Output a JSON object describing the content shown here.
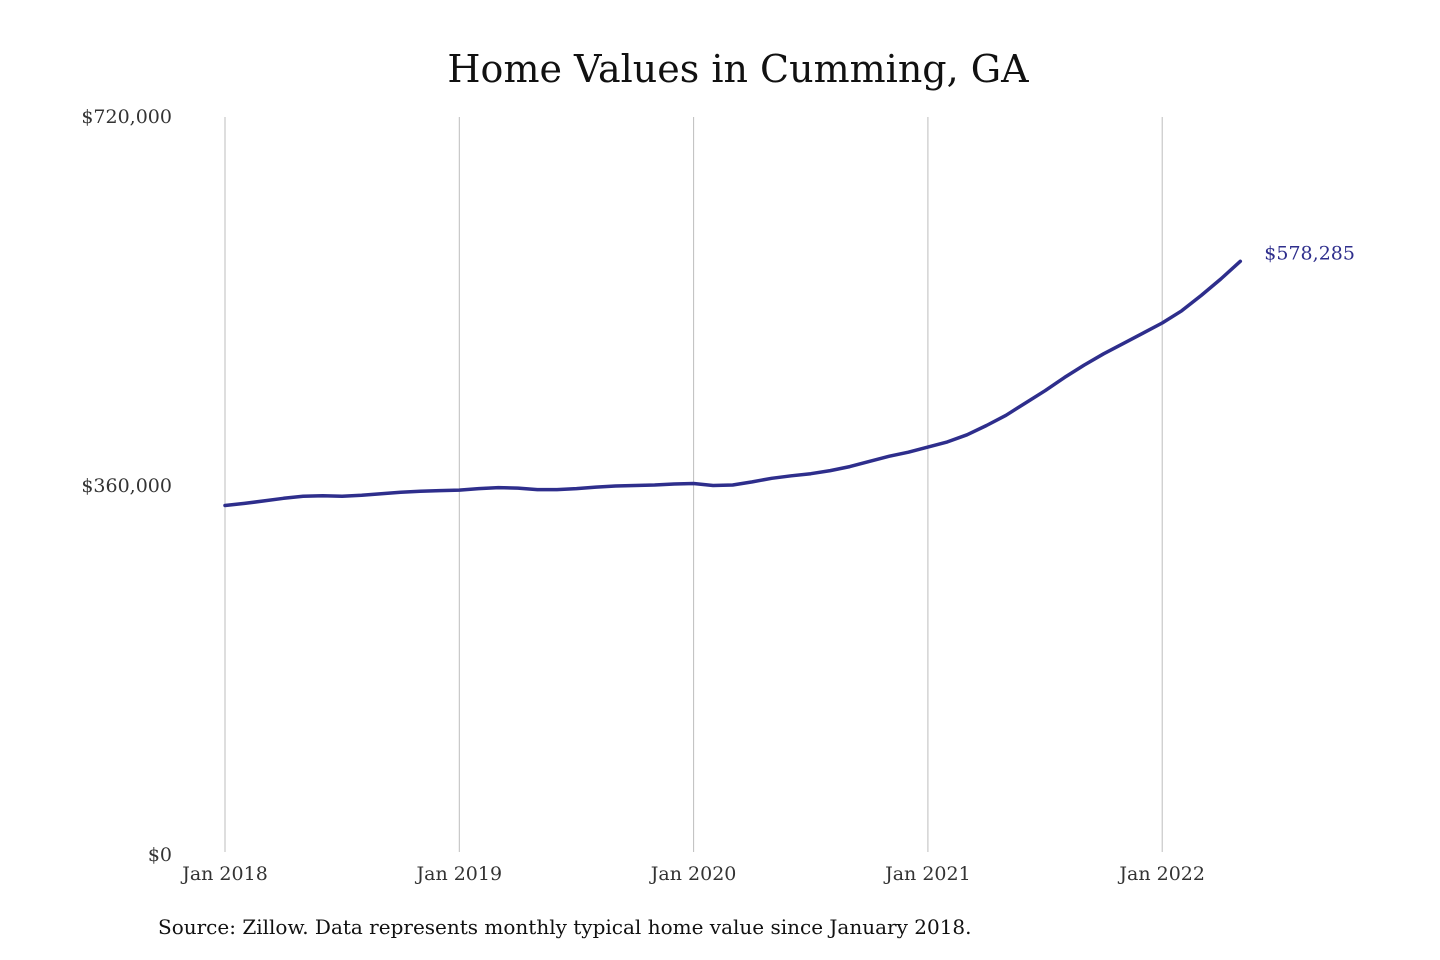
{
  "chart_data": {
    "type": "line",
    "title": "Home Values in Cumming, GA",
    "xlabel": "",
    "ylabel": "",
    "ylim": [
      0,
      720000
    ],
    "y_ticks": [
      {
        "value": 0,
        "label": "$0"
      },
      {
        "value": 360000,
        "label": "$360,000"
      },
      {
        "value": 720000,
        "label": "$720,000"
      }
    ],
    "x_ticks": [
      {
        "value": "2018-01",
        "label": "Jan 2018"
      },
      {
        "value": "2019-01",
        "label": "Jan 2019"
      },
      {
        "value": "2020-01",
        "label": "Jan 2020"
      },
      {
        "value": "2021-01",
        "label": "Jan 2021"
      },
      {
        "value": "2022-01",
        "label": "Jan 2022"
      }
    ],
    "grid": "vertical",
    "series": [
      {
        "color": "#2e2e8c",
        "x": [
          "2018-01",
          "2018-02",
          "2018-03",
          "2018-04",
          "2018-05",
          "2018-06",
          "2018-07",
          "2018-08",
          "2018-09",
          "2018-10",
          "2018-11",
          "2018-12",
          "2019-01",
          "2019-02",
          "2019-03",
          "2019-04",
          "2019-05",
          "2019-06",
          "2019-07",
          "2019-08",
          "2019-09",
          "2019-10",
          "2019-11",
          "2019-12",
          "2020-01",
          "2020-02",
          "2020-03",
          "2020-04",
          "2020-05",
          "2020-06",
          "2020-07",
          "2020-08",
          "2020-09",
          "2020-10",
          "2020-11",
          "2020-12",
          "2021-01",
          "2021-02",
          "2021-03",
          "2021-04",
          "2021-05",
          "2021-06",
          "2021-07",
          "2021-08",
          "2021-09",
          "2021-10",
          "2021-11",
          "2021-12",
          "2022-01",
          "2022-02",
          "2022-03",
          "2022-04",
          "2022-05"
        ],
        "values": [
          340000,
          342000,
          344500,
          347000,
          349000,
          349500,
          349000,
          350000,
          351500,
          353000,
          354000,
          354500,
          355000,
          356500,
          357500,
          357000,
          355500,
          355500,
          356500,
          358000,
          359000,
          359500,
          360000,
          361000,
          361500,
          359500,
          360000,
          363000,
          366500,
          369000,
          371000,
          374000,
          378000,
          383000,
          388000,
          392000,
          397000,
          402000,
          409000,
          418000,
          428000,
          440000,
          452000,
          465000,
          477000,
          488000,
          498000,
          508000,
          518000,
          530000,
          545000,
          561000,
          578285
        ]
      }
    ],
    "annotations": [
      {
        "x": "2022-05",
        "y": 578285,
        "text": "$578,285"
      }
    ],
    "source": "Source: Zillow. Data represents monthly typical home value since January 2018."
  }
}
